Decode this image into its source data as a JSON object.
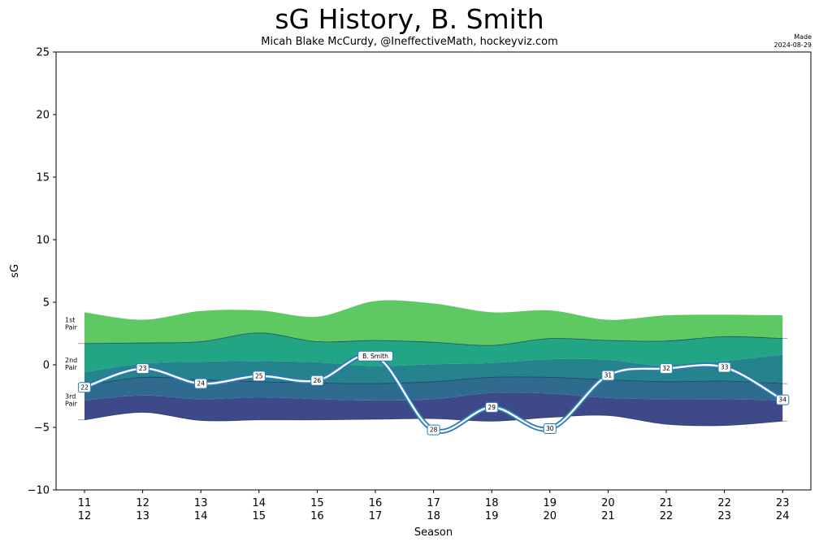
{
  "header": {
    "title": "sG History, B. Smith",
    "subtitle": "Micah Blake McCurdy, @IneffectiveMath, hockeyviz.com",
    "made_label": "Made",
    "made_date": "2024-08-29"
  },
  "chart_data": {
    "type": "area",
    "title": "sG History, B. Smith",
    "subtitle": "Micah Blake McCurdy, @IneffectiveMath, hockeyviz.com",
    "xlabel": "Season",
    "ylabel": "sG",
    "ylim": [
      -10,
      25
    ],
    "yticks": [
      -10,
      -5,
      0,
      5,
      10,
      15,
      20,
      25
    ],
    "grid": false,
    "seasons": [
      {
        "top": "11",
        "bottom": "12"
      },
      {
        "top": "12",
        "bottom": "13"
      },
      {
        "top": "13",
        "bottom": "14"
      },
      {
        "top": "14",
        "bottom": "15"
      },
      {
        "top": "15",
        "bottom": "16"
      },
      {
        "top": "16",
        "bottom": "17"
      },
      {
        "top": "17",
        "bottom": "18"
      },
      {
        "top": "18",
        "bottom": "19"
      },
      {
        "top": "19",
        "bottom": "20"
      },
      {
        "top": "20",
        "bottom": "21"
      },
      {
        "top": "21",
        "bottom": "22"
      },
      {
        "top": "22",
        "bottom": "23"
      },
      {
        "top": "23",
        "bottom": "24"
      }
    ],
    "bands": {
      "colors": [
        "#3e4989",
        "#2e6b8e",
        "#25838d",
        "#21a585",
        "#5ec962"
      ],
      "boundaries": [
        [
          -4.4,
          -3.8,
          -4.45,
          -4.4,
          -4.4,
          -4.35,
          -4.3,
          -4.5,
          -4.2,
          -4.05,
          -4.75,
          -4.85,
          -4.5
        ],
        [
          -2.85,
          -2.45,
          -2.75,
          -2.6,
          -2.75,
          -2.85,
          -2.75,
          -2.25,
          -2.3,
          -2.65,
          -2.75,
          -2.75,
          -2.85
        ],
        [
          -1.7,
          -1.0,
          -1.2,
          -1.35,
          -1.45,
          -1.5,
          -1.35,
          -1.0,
          -1.0,
          -1.2,
          -1.35,
          -1.3,
          -1.5
        ],
        [
          -0.6,
          0.1,
          0.25,
          0.3,
          0.2,
          -0.1,
          0.05,
          0.15,
          0.45,
          0.4,
          -0.1,
          0.3,
          0.8
        ],
        [
          1.7,
          1.75,
          1.85,
          2.55,
          1.85,
          1.95,
          1.8,
          1.55,
          2.1,
          1.95,
          1.9,
          2.25,
          2.1
        ],
        [
          4.2,
          3.6,
          4.3,
          4.35,
          3.85,
          5.1,
          4.9,
          4.2,
          4.35,
          3.6,
          3.95,
          4.0,
          3.95
        ]
      ]
    },
    "pair_labels": [
      {
        "label": "1st\nPair",
        "y": 3.2
      },
      {
        "label": "2nd\nPair",
        "y": 0.0
      },
      {
        "label": "3rd\nPair",
        "y": -2.9
      }
    ],
    "series": [
      {
        "name": "B. Smith",
        "color": "#2a7ab9",
        "values": [
          -1.8,
          -0.3,
          -1.5,
          -0.9,
          -1.25,
          0.7,
          -5.2,
          -3.4,
          -5.1,
          -0.85,
          -0.3,
          -0.2,
          -2.8
        ],
        "point_labels": [
          "22",
          "23",
          "24",
          "25",
          "26",
          "B. Smith",
          "28",
          "29",
          "30",
          "31",
          "32",
          "33",
          "34"
        ]
      }
    ]
  }
}
